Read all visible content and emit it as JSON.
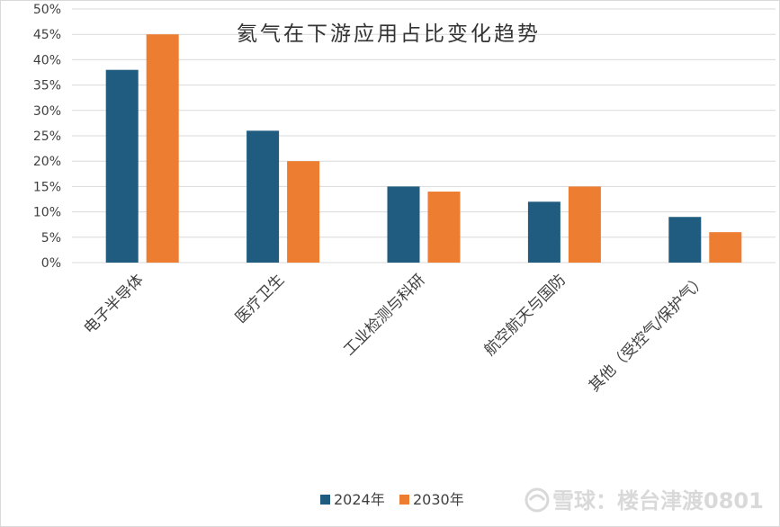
{
  "chart_data": {
    "type": "bar",
    "title": "氦气在下游应用占比变化趋势",
    "categories": [
      "电子半导体",
      "医疗卫生",
      "工业检测与科研",
      "航空航天与国防",
      "其他（受控气/保护气）"
    ],
    "series": [
      {
        "name": "2024年",
        "color": "#1f5c80",
        "values": [
          0.38,
          0.26,
          0.15,
          0.12,
          0.09
        ]
      },
      {
        "name": "2030年",
        "color": "#ed7d31",
        "values": [
          0.45,
          0.2,
          0.14,
          0.15,
          0.06
        ]
      }
    ],
    "yticks": [
      "0%",
      "5%",
      "10%",
      "15%",
      "20%",
      "25%",
      "30%",
      "35%",
      "40%",
      "45%",
      "50%"
    ],
    "ylim": [
      0,
      0.5
    ],
    "grid": true,
    "legend_position": "bottom"
  },
  "watermark": {
    "text": "雪球：楼台津渡0801",
    "icon": "snowball-logo-icon"
  }
}
